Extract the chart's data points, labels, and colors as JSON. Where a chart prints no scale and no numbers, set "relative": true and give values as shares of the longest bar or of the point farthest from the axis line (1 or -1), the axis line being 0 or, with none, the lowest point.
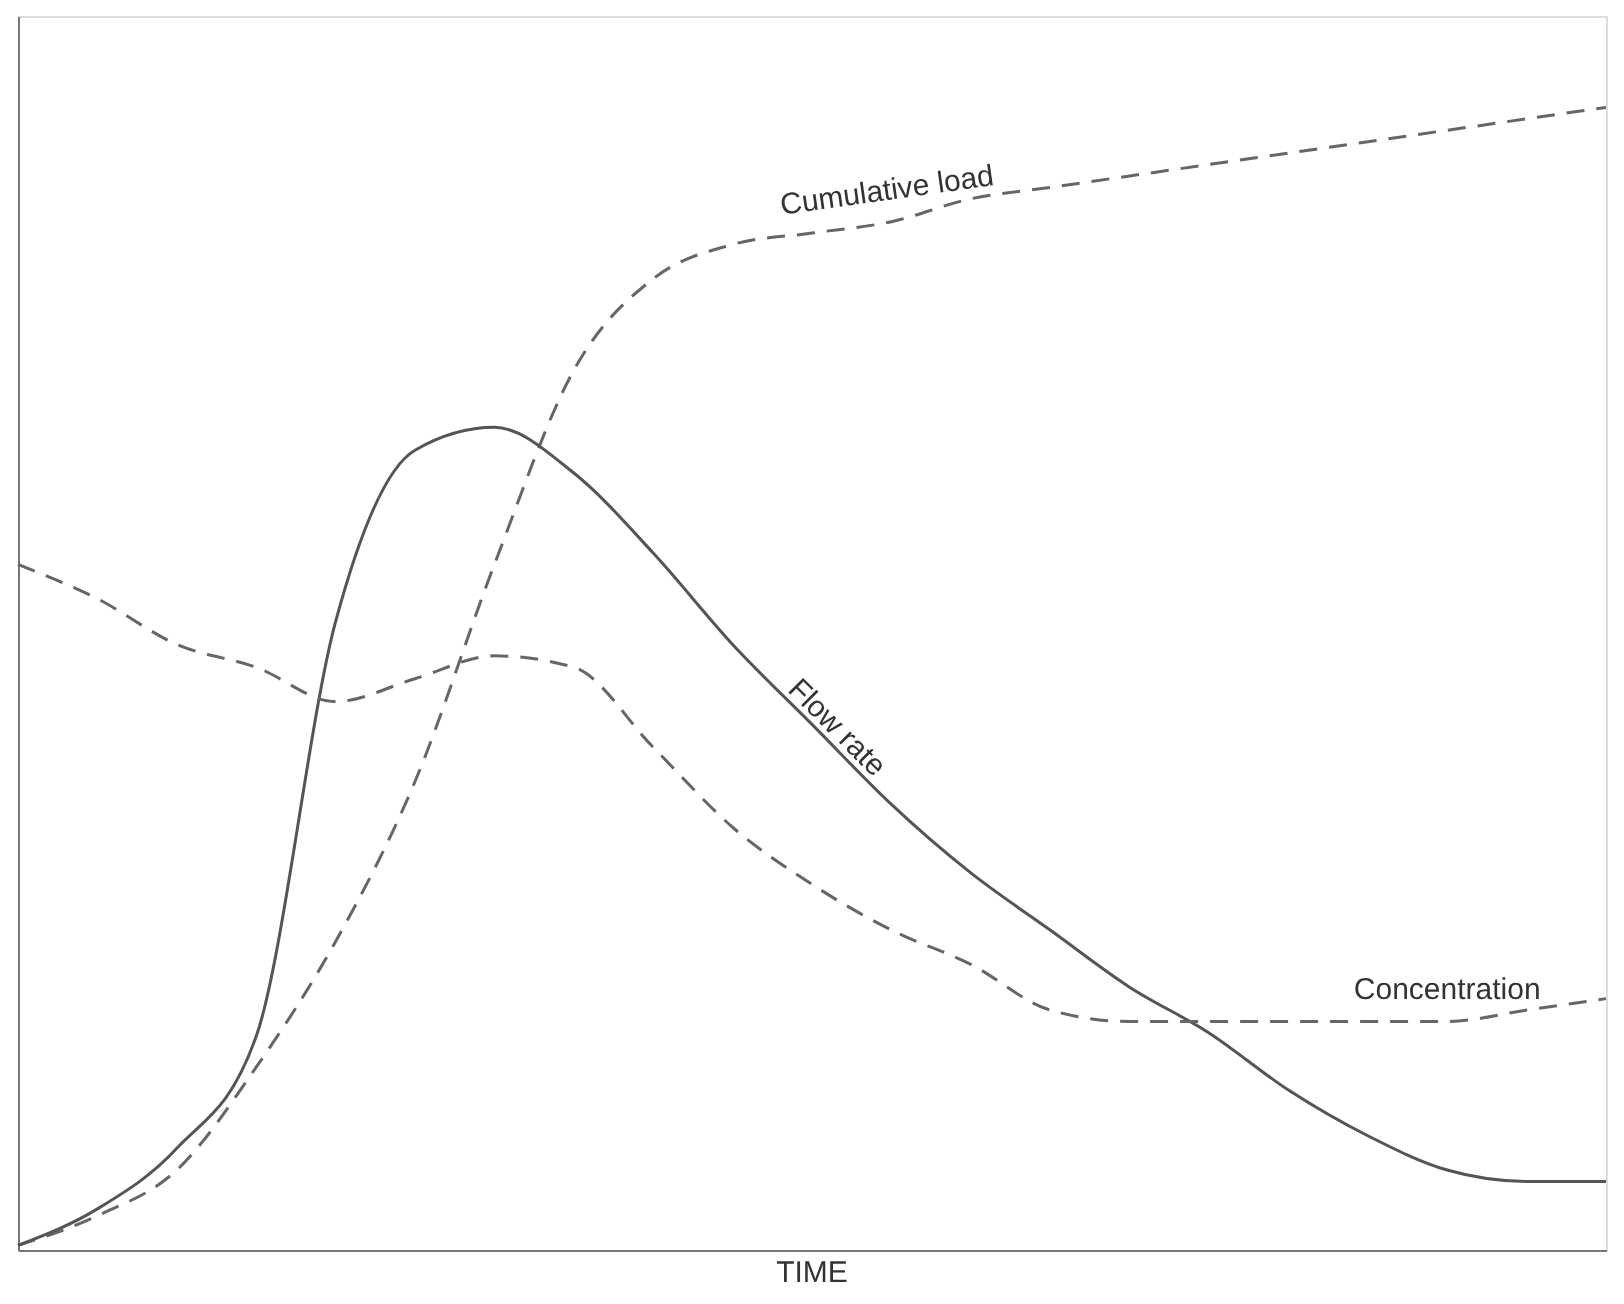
{
  "chart_data": {
    "type": "line",
    "relative": true,
    "xlabel": "TIME",
    "tick_labels": false,
    "grid": false,
    "marker": "none",
    "categories": [
      null,
      null,
      null,
      null,
      null,
      null,
      null,
      null,
      null,
      null,
      null,
      null,
      null,
      null,
      null,
      null,
      null,
      null,
      null,
      null,
      null
    ],
    "series": [
      {
        "name": "Cumulative load",
        "color": "#666666",
        "line_style": "dashed",
        "values": [
          0.004,
          0.03,
          0.07,
          0.16,
          0.27,
          0.41,
          0.6,
          0.77,
          0.85,
          0.88,
          0.89,
          0.9,
          0.92,
          0.93,
          0.94,
          0.95,
          0.96,
          0.97,
          0.98,
          0.99,
          1.0
        ]
      },
      {
        "name": "Flow rate",
        "color": "#555555",
        "line_style": "solid",
        "values": [
          0.004,
          0.036,
          0.089,
          0.187,
          0.55,
          0.7,
          0.72,
          0.68,
          0.61,
          0.53,
          0.46,
          0.39,
          0.33,
          0.28,
          0.23,
          0.19,
          0.14,
          0.1,
          0.07,
          0.06,
          0.06
        ]
      },
      {
        "name": "Concentration",
        "color": "#666666",
        "line_style": "dashed",
        "values": [
          0.6,
          0.57,
          0.53,
          0.51,
          0.48,
          0.5,
          0.52,
          0.51,
          0.44,
          0.37,
          0.32,
          0.28,
          0.25,
          0.21,
          0.2,
          0.2,
          0.2,
          0.2,
          0.2,
          0.21,
          0.22
        ]
      }
    ]
  }
}
